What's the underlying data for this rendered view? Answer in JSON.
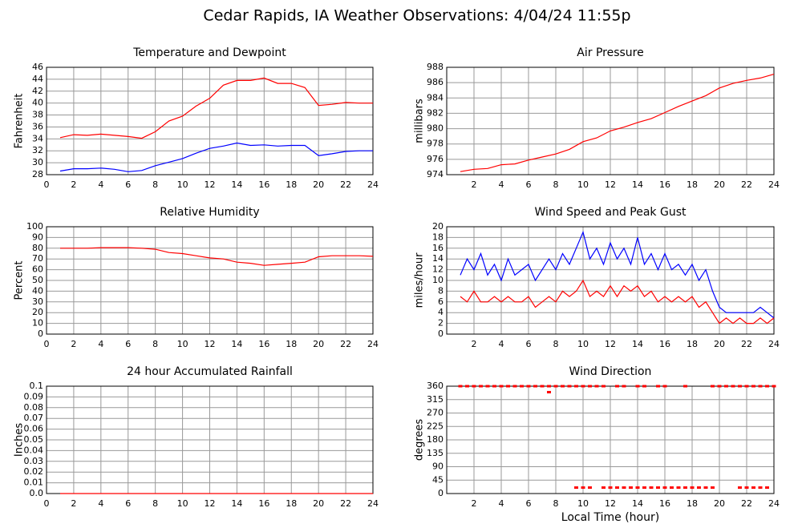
{
  "title": "Cedar Rapids, IA Weather Observations: 4/04/24 11:55p",
  "chart_data": [
    {
      "type": "line",
      "title": "Temperature and Dewpoint",
      "ylabel": "Fahrenheit",
      "x": [
        1,
        2,
        3,
        4,
        5,
        6,
        7,
        8,
        9,
        10,
        11,
        12,
        13,
        14,
        15,
        16,
        17,
        18,
        19,
        20,
        21,
        22,
        23,
        24
      ],
      "series": [
        {
          "color": "#ff0000",
          "values": [
            34.2,
            34.7,
            34.6,
            34.8,
            34.6,
            34.4,
            34.1,
            35.2,
            37,
            37.8,
            39.5,
            40.8,
            43,
            43.8,
            43.8,
            44.2,
            43.3,
            43.3,
            42.6,
            39.6,
            39.8,
            40.1,
            40,
            40
          ]
        },
        {
          "color": "#0000ff",
          "values": [
            28.6,
            29,
            29,
            29.1,
            28.9,
            28.5,
            28.7,
            29.5,
            30.1,
            30.7,
            31.6,
            32.4,
            32.8,
            33.3,
            32.9,
            33,
            32.8,
            32.9,
            32.9,
            31.2,
            31.5,
            31.9,
            32,
            32
          ]
        }
      ],
      "xlim": [
        0,
        24
      ],
      "xticks": [
        0,
        2,
        4,
        6,
        8,
        10,
        12,
        14,
        16,
        18,
        20,
        22,
        24
      ],
      "ylim": [
        28,
        46
      ],
      "yticks": [
        28,
        30,
        32,
        34,
        36,
        38,
        40,
        42,
        44,
        46
      ],
      "grid": true
    },
    {
      "type": "line",
      "title": "Air Pressure",
      "ylabel": "millibars",
      "x": [
        1,
        2,
        3,
        4,
        5,
        6,
        7,
        8,
        9,
        10,
        11,
        12,
        13,
        14,
        15,
        16,
        17,
        18,
        19,
        20,
        21,
        22,
        23,
        24
      ],
      "series": [
        {
          "color": "#ff0000",
          "values": [
            974.4,
            974.7,
            974.8,
            975.3,
            975.4,
            975.9,
            976.3,
            976.7,
            977.3,
            978.3,
            978.8,
            979.7,
            980.2,
            980.8,
            981.3,
            982.1,
            982.9,
            983.6,
            984.3,
            985.3,
            985.9,
            986.3,
            986.6,
            987.1
          ]
        }
      ],
      "xlim": [
        0,
        24
      ],
      "xticks": [
        2,
        4,
        6,
        8,
        10,
        12,
        14,
        16,
        18,
        20,
        22,
        24
      ],
      "ylim": [
        974,
        988
      ],
      "yticks": [
        974,
        976,
        978,
        980,
        982,
        984,
        986,
        988
      ],
      "grid": true
    },
    {
      "type": "line",
      "title": "Relative Humidity",
      "ylabel": "Percent",
      "x": [
        1,
        2,
        3,
        4,
        5,
        6,
        7,
        8,
        9,
        10,
        11,
        12,
        13,
        14,
        15,
        16,
        17,
        18,
        19,
        20,
        21,
        22,
        23,
        24
      ],
      "series": [
        {
          "color": "#ff0000",
          "values": [
            80,
            80,
            80,
            80.5,
            80.5,
            80.5,
            80,
            79,
            76,
            75,
            73,
            71,
            70,
            67,
            66,
            64,
            65,
            66,
            67,
            72,
            73,
            73,
            73,
            72.5
          ]
        }
      ],
      "xlim": [
        0,
        24
      ],
      "xticks": [
        0,
        2,
        4,
        6,
        8,
        10,
        12,
        14,
        16,
        18,
        20,
        22,
        24
      ],
      "ylim": [
        0,
        100
      ],
      "yticks": [
        0,
        10,
        20,
        30,
        40,
        50,
        60,
        70,
        80,
        90,
        100
      ],
      "grid": true
    },
    {
      "type": "line",
      "title": "Wind Speed and Peak Gust",
      "ylabel": "miles/hour",
      "x": [
        1,
        1.5,
        2,
        2.5,
        3,
        3.5,
        4,
        4.5,
        5,
        5.5,
        6,
        6.5,
        7,
        7.5,
        8,
        8.5,
        9,
        9.5,
        10,
        10.5,
        11,
        11.5,
        12,
        12.5,
        13,
        13.5,
        14,
        14.5,
        15,
        15.5,
        16,
        16.5,
        17,
        17.5,
        18,
        18.5,
        19,
        19.5,
        20,
        20.5,
        21,
        21.5,
        22,
        22.5,
        23,
        23.5,
        24
      ],
      "series": [
        {
          "color": "#0000ff",
          "values": [
            11,
            14,
            12,
            15,
            11,
            13,
            10,
            14,
            11,
            12,
            13,
            10,
            12,
            14,
            12,
            15,
            13,
            16,
            19,
            14,
            16,
            13,
            17,
            14,
            16,
            13,
            18,
            13,
            15,
            12,
            15,
            12,
            13,
            11,
            13,
            10,
            12,
            8,
            5,
            4,
            4,
            4,
            4,
            4,
            5,
            4,
            3
          ]
        },
        {
          "color": "#ff0000",
          "values": [
            7,
            6,
            8,
            6,
            6,
            7,
            6,
            7,
            6,
            6,
            7,
            5,
            6,
            7,
            6,
            8,
            7,
            8,
            10,
            7,
            8,
            7,
            9,
            7,
            9,
            8,
            9,
            7,
            8,
            6,
            7,
            6,
            7,
            6,
            7,
            5,
            6,
            4,
            2,
            3,
            2,
            3,
            2,
            2,
            3,
            2,
            3
          ]
        }
      ],
      "xlim": [
        0,
        24
      ],
      "xticks": [
        2,
        4,
        6,
        8,
        10,
        12,
        14,
        16,
        18,
        20,
        22,
        24
      ],
      "ylim": [
        0,
        20
      ],
      "yticks": [
        0,
        2,
        4,
        6,
        8,
        10,
        12,
        14,
        16,
        18,
        20
      ],
      "grid": true
    },
    {
      "type": "line",
      "title": "24 hour Accumulated Rainfall",
      "ylabel": "Inches",
      "x": [
        1,
        24
      ],
      "series": [
        {
          "color": "#ff0000",
          "values": [
            0,
            0
          ]
        }
      ],
      "xlim": [
        0,
        24
      ],
      "xticks": [
        0,
        2,
        4,
        6,
        8,
        10,
        12,
        14,
        16,
        18,
        20,
        22,
        24
      ],
      "ylim": [
        0,
        0.1
      ],
      "yticks": [
        {
          "value": 0,
          "label": "0.0"
        },
        0.01,
        0.02,
        0.03,
        0.04,
        0.05,
        0.06,
        0.07,
        0.08,
        0.09,
        0.1
      ],
      "grid": true
    },
    {
      "type": "scatter",
      "title": "Wind Direction",
      "ylabel": "degrees",
      "xlabel": "Local Time (hour)",
      "color": "#ff0000",
      "x": [
        1,
        1.5,
        2,
        2.5,
        3,
        3.5,
        4,
        4.5,
        5,
        5.5,
        6,
        6.5,
        7,
        7.5,
        8,
        8.5,
        9,
        9.5,
        10,
        10.5,
        11,
        11.5,
        12.5,
        13,
        14,
        14.5,
        15.5,
        16,
        17.5,
        19.5,
        20,
        20.5,
        21,
        21.5,
        22,
        22.5,
        23,
        23.5,
        24,
        7.5,
        9.5,
        10,
        10.5,
        11.5,
        12,
        12.5,
        13,
        13.5,
        14,
        14.5,
        15,
        15.5,
        16,
        16.5,
        17,
        17.5,
        18,
        18.5,
        19,
        19.5,
        21.5,
        22,
        22.5,
        23,
        23.5
      ],
      "values": [
        360,
        360,
        360,
        360,
        360,
        360,
        360,
        360,
        360,
        360,
        360,
        360,
        360,
        360,
        360,
        360,
        360,
        360,
        360,
        360,
        360,
        360,
        360,
        360,
        360,
        360,
        360,
        360,
        360,
        360,
        360,
        360,
        360,
        360,
        360,
        360,
        360,
        360,
        360,
        340,
        20,
        20,
        20,
        20,
        20,
        20,
        20,
        20,
        20,
        20,
        20,
        20,
        20,
        20,
        20,
        20,
        20,
        20,
        20,
        20,
        20,
        20,
        20,
        20,
        20
      ],
      "xlim": [
        0,
        24
      ],
      "xticks": [
        2,
        4,
        6,
        8,
        10,
        12,
        14,
        16,
        18,
        20,
        22,
        24
      ],
      "ylim": [
        0,
        360
      ],
      "yticks": [
        0,
        45,
        90,
        135,
        180,
        225,
        270,
        315,
        360
      ],
      "grid": true
    }
  ]
}
